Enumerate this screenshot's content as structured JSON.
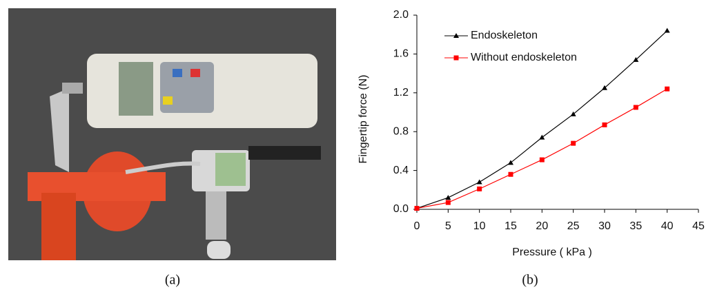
{
  "chart_data": {
    "type": "line",
    "x_label": "Pressure ( kPa )",
    "y_label": "Fingertip  force (N)",
    "x": [
      0,
      5,
      10,
      15,
      20,
      25,
      30,
      35,
      40
    ],
    "series": [
      {
        "name": "Endoskeleton",
        "color": "#000000",
        "marker": "triangle",
        "values": [
          0.01,
          0.12,
          0.28,
          0.48,
          0.74,
          0.98,
          1.25,
          1.54,
          1.84
        ]
      },
      {
        "name": "Without endoskeleton",
        "color": "#ff0000",
        "marker": "square",
        "values": [
          0.01,
          0.07,
          0.21,
          0.36,
          0.51,
          0.68,
          0.87,
          1.05,
          1.24
        ]
      }
    ],
    "xlim": [
      0,
      45
    ],
    "xticks": [
      0,
      5,
      10,
      15,
      20,
      25,
      30,
      35,
      40,
      45
    ],
    "ylim": [
      0,
      2
    ],
    "yticks": [
      {
        "value": 0,
        "label": "0.0"
      },
      0.4,
      0.8,
      1.2,
      1.6,
      {
        "value": 2,
        "label": "2.0"
      }
    ],
    "legend": "upper left",
    "grid": false
  },
  "captions": [
    "(a)",
    "(b)"
  ]
}
